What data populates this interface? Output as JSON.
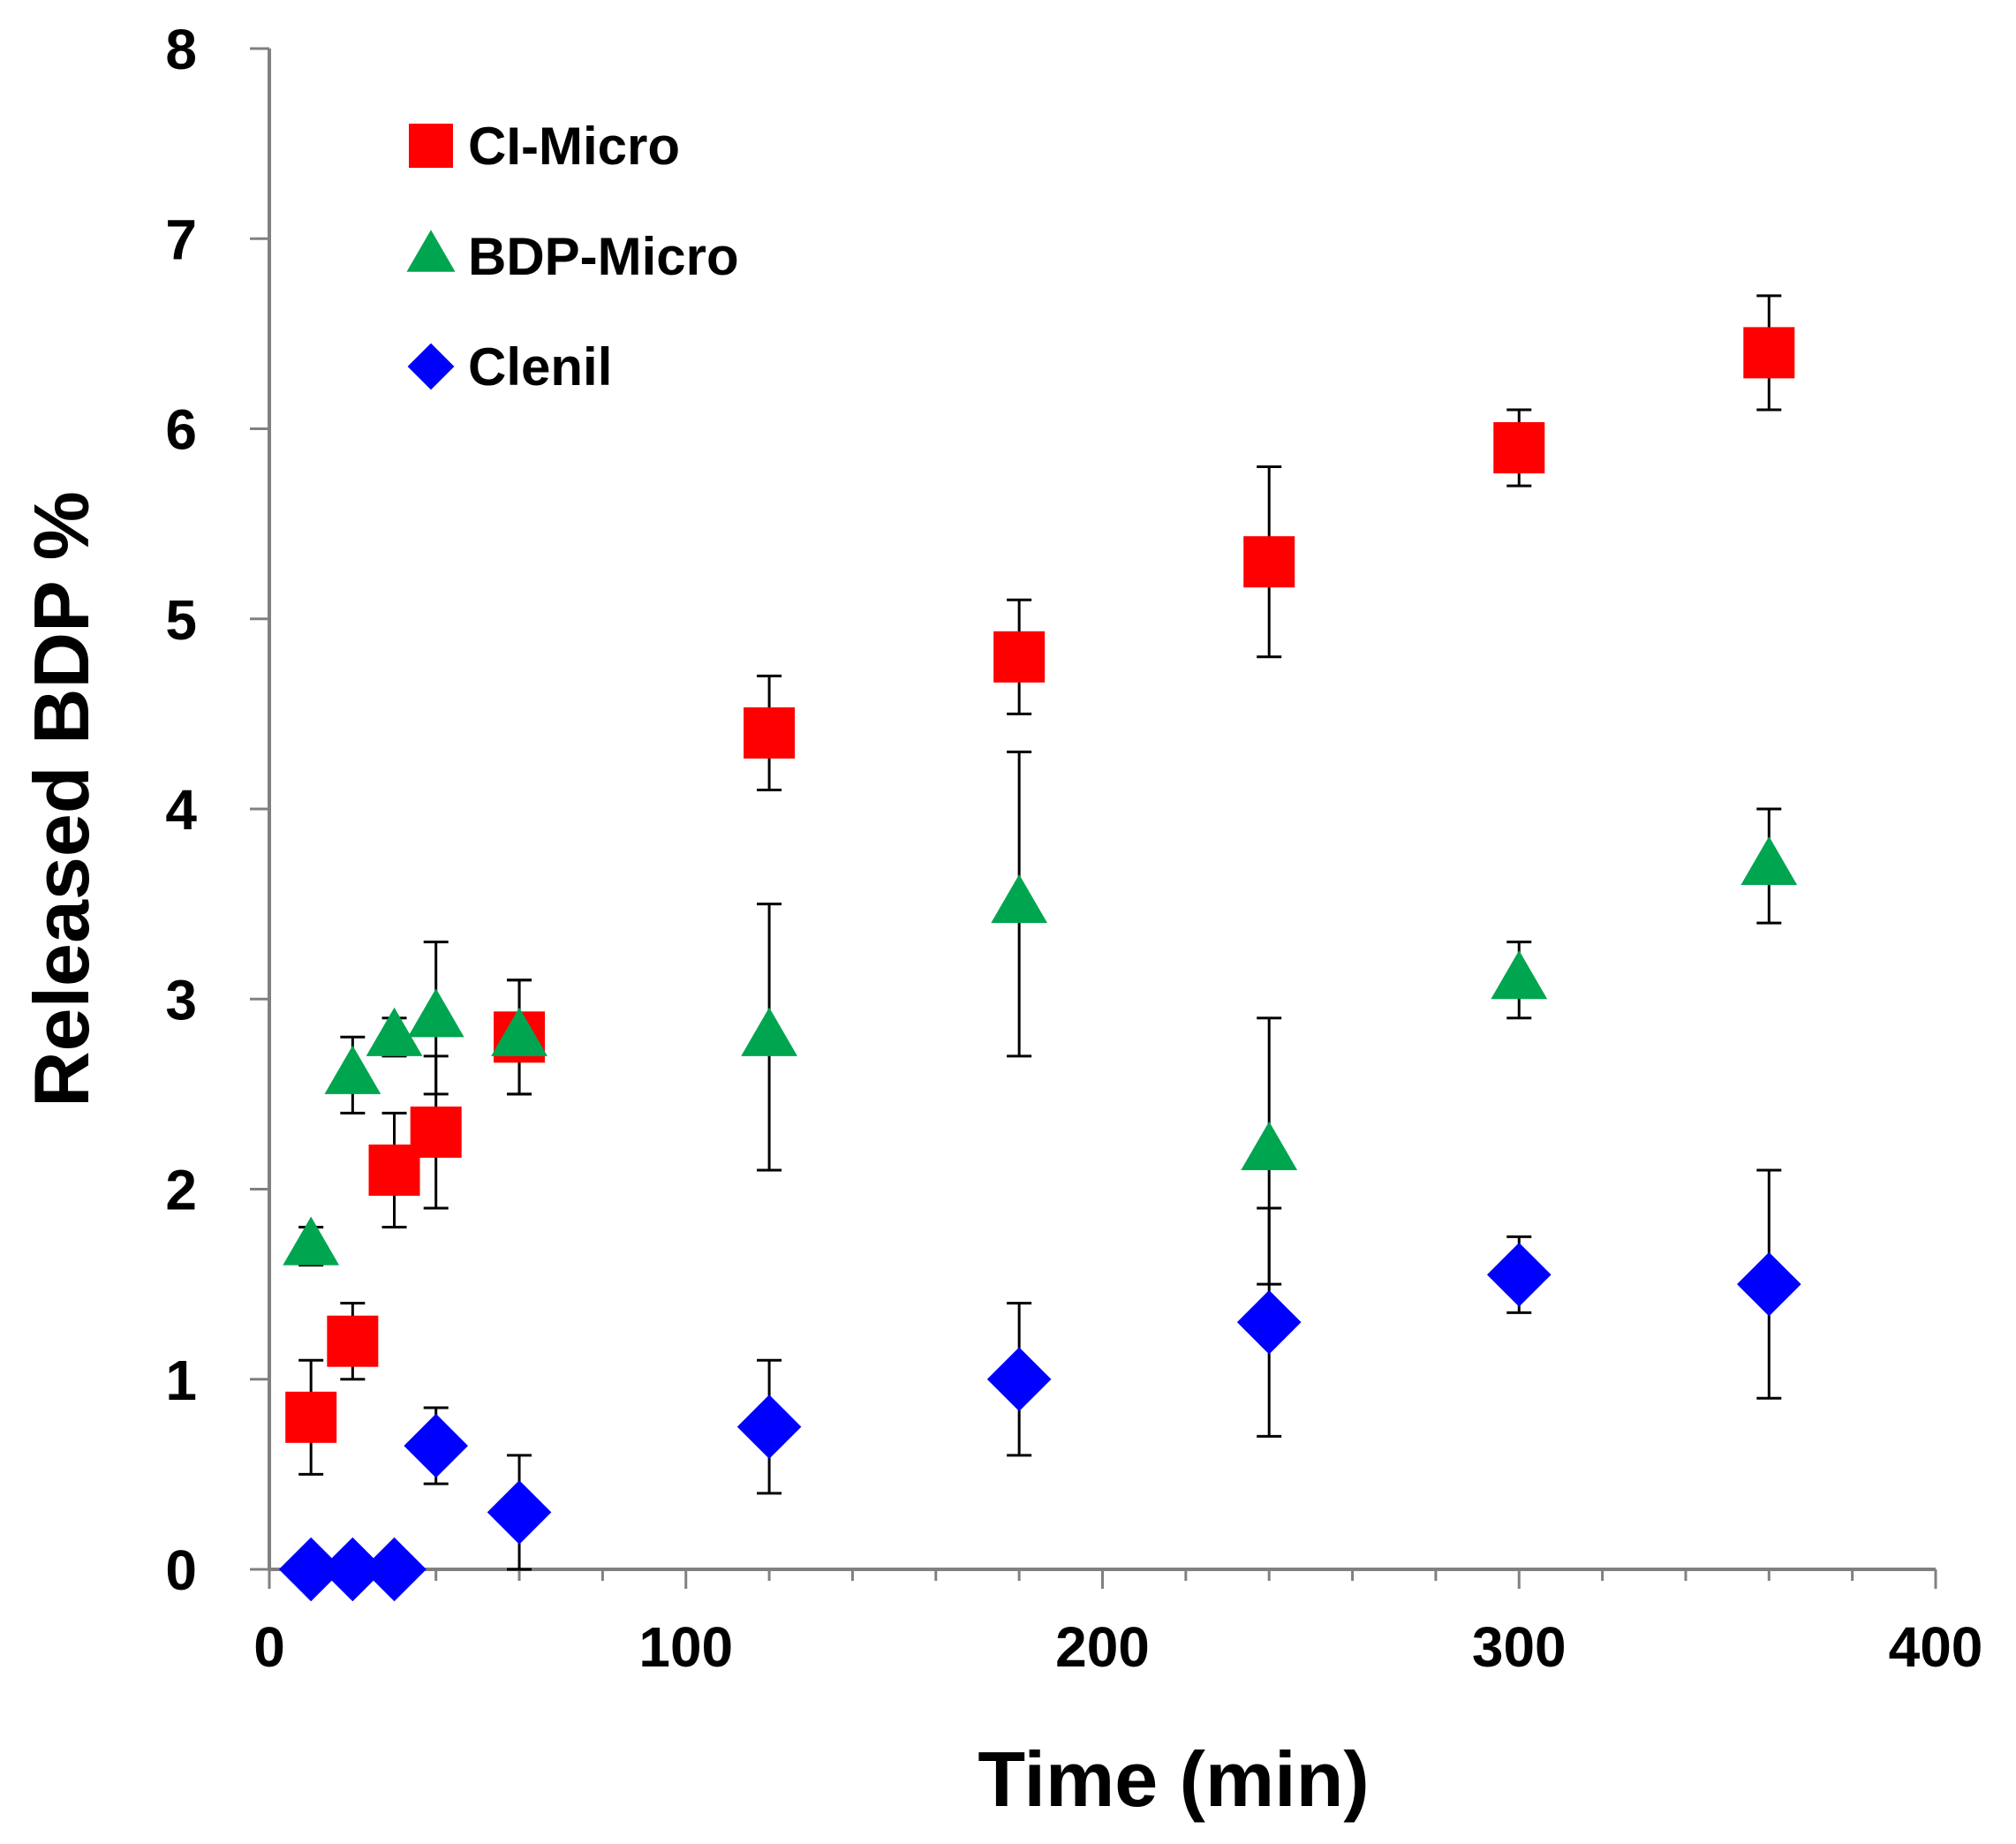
{
  "chart_data": {
    "type": "scatter",
    "xlabel": "Time (min)",
    "ylabel": "Released BDP %",
    "xlim": [
      0,
      400
    ],
    "ylim": [
      0,
      8
    ],
    "xticks": [
      0,
      100,
      200,
      300,
      400
    ],
    "yticks": [
      0,
      1,
      2,
      3,
      4,
      5,
      6,
      7,
      8
    ],
    "grid": false,
    "legend_position": "top-left",
    "series": [
      {
        "name": "CI-Micro",
        "marker": "square",
        "color": "#ff0000",
        "points": [
          {
            "x": 10,
            "y": 0.8,
            "err": 0.3
          },
          {
            "x": 20,
            "y": 1.2,
            "err": 0.2
          },
          {
            "x": 30,
            "y": 2.1,
            "err": 0.3
          },
          {
            "x": 40,
            "y": 2.3,
            "err": 0.4
          },
          {
            "x": 60,
            "y": 2.8,
            "err": 0.3
          },
          {
            "x": 120,
            "y": 4.4,
            "err": 0.3
          },
          {
            "x": 180,
            "y": 4.8,
            "err": 0.3
          },
          {
            "x": 240,
            "y": 5.3,
            "err": 0.5
          },
          {
            "x": 300,
            "y": 5.9,
            "err": 0.2
          },
          {
            "x": 360,
            "y": 6.4,
            "err": 0.3
          }
        ]
      },
      {
        "name": "BDP-Micro",
        "marker": "triangle",
        "color": "#00a550",
        "points": [
          {
            "x": 10,
            "y": 1.7,
            "err": 0.1
          },
          {
            "x": 20,
            "y": 2.6,
            "err": 0.2
          },
          {
            "x": 30,
            "y": 2.8,
            "err": 0.1
          },
          {
            "x": 40,
            "y": 2.9,
            "err": 0.4
          },
          {
            "x": 60,
            "y": 2.8,
            "err": 0.3
          },
          {
            "x": 120,
            "y": 2.8,
            "err": 0.7
          },
          {
            "x": 180,
            "y": 3.5,
            "err": 0.8
          },
          {
            "x": 240,
            "y": 2.2,
            "err": 0.7
          },
          {
            "x": 300,
            "y": 3.1,
            "err": 0.2
          },
          {
            "x": 360,
            "y": 3.7,
            "err": 0.3
          }
        ]
      },
      {
        "name": "Clenil",
        "marker": "diamond",
        "color": "#0000ff",
        "points": [
          {
            "x": 10,
            "y": 0,
            "err": 0
          },
          {
            "x": 20,
            "y": 0,
            "err": 0
          },
          {
            "x": 30,
            "y": 0,
            "err": 0
          },
          {
            "x": 40,
            "y": 0.65,
            "err": 0.2
          },
          {
            "x": 60,
            "y": 0.3,
            "err": 0.3
          },
          {
            "x": 120,
            "y": 0.75,
            "err": 0.35
          },
          {
            "x": 180,
            "y": 1.0,
            "err": 0.4
          },
          {
            "x": 240,
            "y": 1.3,
            "err": 0.6
          },
          {
            "x": 300,
            "y": 1.55,
            "err": 0.2
          },
          {
            "x": 360,
            "y": 1.5,
            "err": 0.6
          }
        ]
      }
    ]
  }
}
